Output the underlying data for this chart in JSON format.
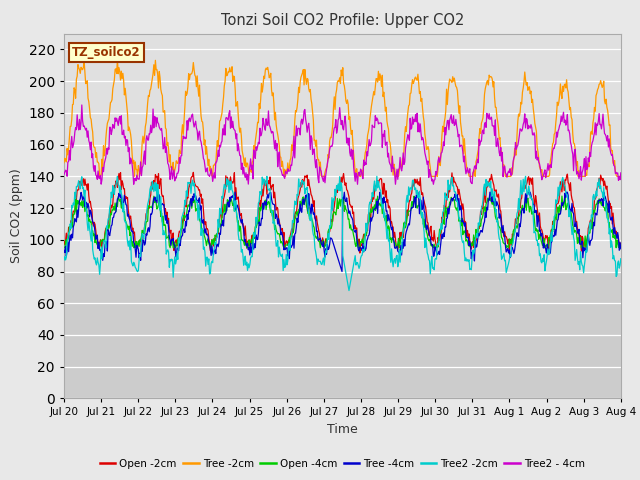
{
  "title": "Tonzi Soil CO2 Profile: Upper CO2",
  "xlabel": "Time",
  "ylabel": "Soil CO2 (ppm)",
  "ylim": [
    0,
    230
  ],
  "yticks": [
    0,
    20,
    40,
    60,
    80,
    100,
    120,
    140,
    160,
    180,
    200,
    220
  ],
  "fig_bg": "#e8e8e8",
  "plot_bg_upper": "#e0e0e0",
  "plot_bg_lower": "#cccccc",
  "legend_label": "TZ_soilco2",
  "series": [
    {
      "name": "Open -2cm",
      "color": "#dd0000"
    },
    {
      "name": "Tree -2cm",
      "color": "#ff9900"
    },
    {
      "name": "Open -4cm",
      "color": "#00cc00"
    },
    {
      "name": "Tree -4cm",
      "color": "#0000cc"
    },
    {
      "name": "Tree2 -2cm",
      "color": "#00cccc"
    },
    {
      "name": "Tree2 - 4cm",
      "color": "#cc00cc"
    }
  ],
  "n_points": 720,
  "x_start": 0,
  "x_end": 15,
  "x_tick_labels": [
    "Jul 20",
    "Jul 21",
    "Jul 22",
    "Jul 23",
    "Jul 24",
    "Jul 25",
    "Jul 26",
    "Jul 27",
    "Jul 28",
    "Jul 29",
    "Jul 30",
    "Jul 31",
    "Aug 1",
    "Aug 2",
    "Aug 3",
    "Aug 4"
  ],
  "x_tick_positions": [
    0,
    1,
    2,
    3,
    4,
    5,
    6,
    7,
    8,
    9,
    10,
    11,
    12,
    13,
    14,
    15
  ]
}
